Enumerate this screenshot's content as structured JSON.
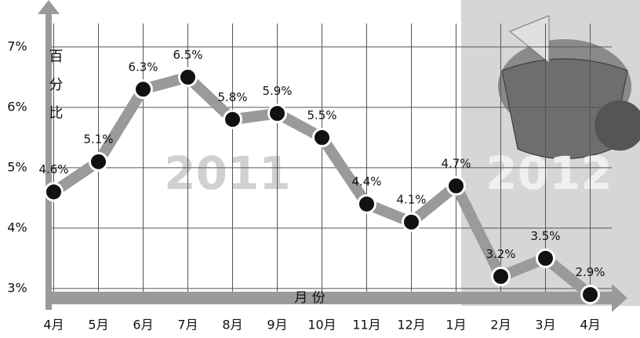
{
  "chart_data": {
    "type": "line",
    "y_label": "百分比",
    "x_label": "月 份",
    "annotations": [
      "2011",
      "2012"
    ],
    "categories": [
      "4月",
      "5月",
      "6月",
      "7月",
      "8月",
      "9月",
      "10月",
      "11月",
      "12月",
      "1月",
      "2月",
      "3月",
      "4月"
    ],
    "values": [
      4.6,
      5.1,
      6.3,
      6.5,
      5.8,
      5.9,
      5.5,
      4.4,
      4.1,
      4.7,
      3.2,
      3.5,
      2.9
    ],
    "value_labels": [
      "4.6%",
      "5.1%",
      "6.3%",
      "6.5%",
      "5.8%",
      "5.9%",
      "5.5%",
      "4.4%",
      "4.1%",
      "4.7%",
      "3.2%",
      "3.5%",
      "2.9%"
    ],
    "color": "#9a9a9a",
    "ylim": [
      2.7,
      7.7
    ],
    "yticks": [
      {
        "value": 3,
        "label": "3%"
      },
      {
        "value": 4,
        "label": "4%"
      },
      {
        "value": 5,
        "label": "5%"
      },
      {
        "value": 6,
        "label": "6%"
      },
      {
        "value": 7,
        "label": "7%"
      }
    ],
    "grid": true
  }
}
